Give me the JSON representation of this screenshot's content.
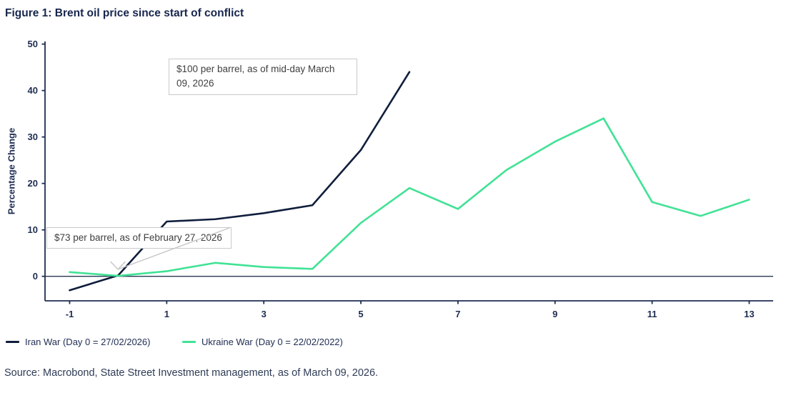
{
  "colors": {
    "iran_line": "#101e3c",
    "ukraine_line": "#41e295",
    "axis": "#1f2d52",
    "zero_line": "#2a3853",
    "annotation_border": "#c9c9c9",
    "annotation_text": "#3f3f3f",
    "title_text": "#17264e",
    "source_text": "#2e3b55"
  },
  "source": "Source: Macrobond, State Street Investment management, as of March 09, 2026.",
  "chart_data": {
    "type": "line",
    "title": "Figure 1: Brent oil price since start of conflict",
    "xlabel": "",
    "ylabel": "Percentage Change",
    "x_ticks": [
      -1,
      1,
      3,
      5,
      7,
      9,
      11,
      13
    ],
    "y_ticks": [
      0,
      10,
      20,
      30,
      40,
      50
    ],
    "xlim": [
      -1.5,
      13.5
    ],
    "ylim": [
      -5.3,
      50.4
    ],
    "grid": false,
    "zero_line": true,
    "legend_position": "bottom-left",
    "series": [
      {
        "name": "Iran War (Day 0 = 27/02/2026)",
        "color": "#101e3c",
        "x": [
          -1,
          0,
          1,
          2,
          3,
          4,
          5,
          6
        ],
        "values": [
          -3.0,
          0.2,
          11.8,
          12.3,
          13.6,
          15.3,
          27.2,
          44.0
        ]
      },
      {
        "name": "Ukraine War (Day 0 = 22/02/2022)",
        "color": "#41e295",
        "x": [
          -1,
          0,
          1,
          2,
          3,
          4,
          5,
          6,
          7,
          8,
          9,
          10,
          11,
          12,
          13
        ],
        "values": [
          0.9,
          0.1,
          1.1,
          2.9,
          2.0,
          1.6,
          11.5,
          19.0,
          14.5,
          22.9,
          29.0,
          34.0,
          16.0,
          13.0,
          16.5
        ]
      }
    ],
    "annotations": [
      {
        "text": "$100 per barrel, as of mid-day March 09, 2026"
      },
      {
        "text": "$73 per barrel, as of February 27, 2026",
        "points_at": "day 0, 0%"
      }
    ]
  }
}
